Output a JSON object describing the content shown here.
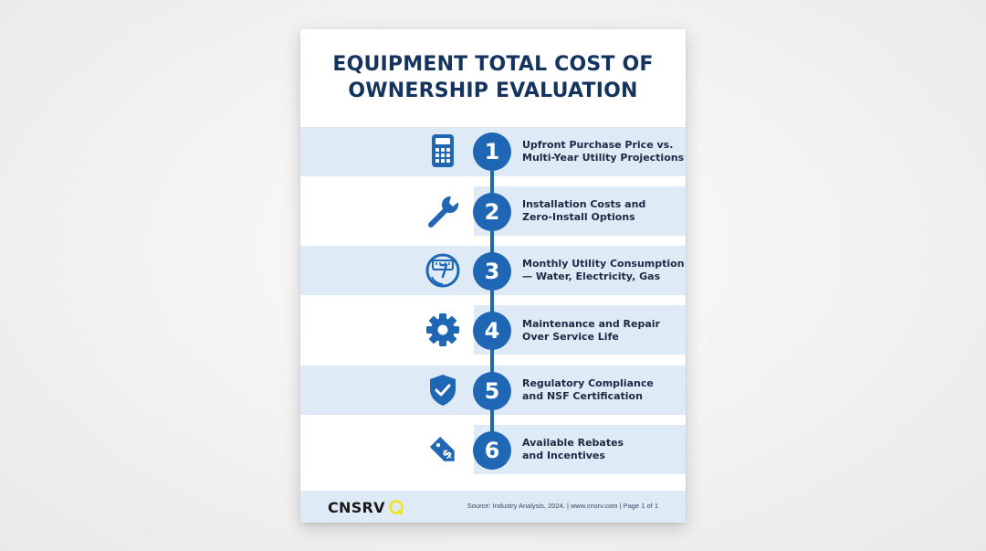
{
  "document": {
    "title_lines": [
      "EQUIPMENT TOTAL COST OF",
      "OWNERSHIP EVALUATION"
    ]
  },
  "steps": [
    {
      "number": "1",
      "icon": "calculator-icon",
      "lines": [
        "Upfront Purchase Price vs.",
        "Multi-Year Utility Projections"
      ]
    },
    {
      "number": "2",
      "icon": "wrench-icon",
      "lines": [
        "Installation Costs and",
        "Zero-Install Options"
      ]
    },
    {
      "number": "3",
      "icon": "meter-gauge-icon",
      "lines": [
        "Monthly Utility Consumption",
        "— Water, Electricity, Gas"
      ]
    },
    {
      "number": "4",
      "icon": "gear-icon",
      "lines": [
        "Maintenance and Repair",
        "Over Service Life"
      ]
    },
    {
      "number": "5",
      "icon": "shield-check-icon",
      "lines": [
        "Regulatory Compliance",
        "and NSF Certification"
      ]
    },
    {
      "number": "6",
      "icon": "price-tag-dollar-icon",
      "lines": [
        "Available Rebates",
        "and Incentives"
      ]
    }
  ],
  "footer": {
    "logo_text": "CNSRV",
    "source": "Source: Industry Analysis, 2024. | www.cnsrv.com | Page 1 of 1"
  },
  "colors": {
    "title": "#14335e",
    "accent_blue": "#1f67b5",
    "band": "#deebf7",
    "logo_accent": "#f2e31d"
  }
}
